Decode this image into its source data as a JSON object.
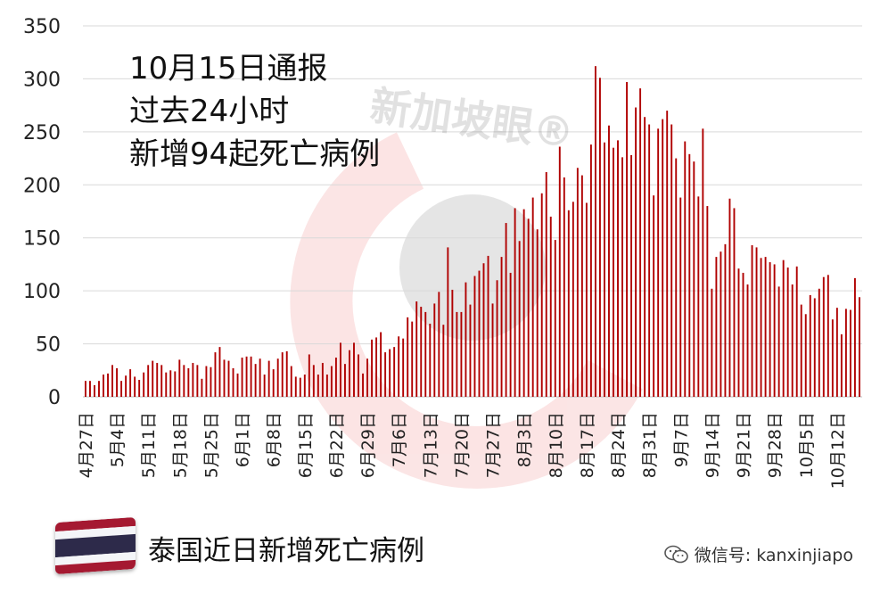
{
  "chart_data": {
    "type": "bar",
    "y_ticks": [
      0,
      50,
      100,
      150,
      200,
      250,
      300,
      350
    ],
    "ylim": [
      0,
      350
    ],
    "grid": true,
    "bar_color": "#b00000",
    "x_tick_labels": [
      "4月27日",
      "5月4日",
      "5月11日",
      "5月18日",
      "5月25日",
      "6月1日",
      "6月8日",
      "6月15日",
      "6月22日",
      "6月29日",
      "7月6日",
      "7月13日",
      "7月20日",
      "7月27日",
      "8月3日",
      "8月10日",
      "8月17日",
      "8月24日",
      "8月31日",
      "9月7日",
      "9月14日",
      "9月21日",
      "9月28日",
      "10月5日",
      "10月12日"
    ],
    "values": [
      15,
      15,
      11,
      15,
      21,
      22,
      30,
      27,
      15,
      20,
      26,
      19,
      16,
      23,
      30,
      34,
      32,
      30,
      23,
      25,
      24,
      35,
      30,
      27,
      32,
      30,
      17,
      29,
      28,
      42,
      47,
      35,
      34,
      27,
      22,
      37,
      38,
      38,
      31,
      36,
      21,
      34,
      26,
      36,
      42,
      43,
      29,
      19,
      18,
      21,
      40,
      30,
      21,
      32,
      21,
      29,
      37,
      51,
      31,
      44,
      51,
      40,
      22,
      36,
      54,
      56,
      61,
      42,
      45,
      47,
      57,
      55,
      75,
      71,
      90,
      85,
      80,
      69,
      88,
      99,
      68,
      141,
      101,
      80,
      80,
      108,
      87,
      114,
      119,
      126,
      133,
      88,
      110,
      132,
      164,
      117,
      178,
      147,
      177,
      168,
      188,
      158,
      192,
      212,
      170,
      148,
      236,
      207,
      176,
      184,
      216,
      209,
      183,
      238,
      312,
      301,
      240,
      256,
      235,
      242,
      226,
      297,
      228,
      273,
      291,
      264,
      257,
      190,
      253,
      262,
      270,
      257,
      225,
      188,
      241,
      229,
      222,
      189,
      253,
      180,
      102,
      132,
      137,
      144,
      187,
      178,
      121,
      117,
      106,
      143,
      141,
      131,
      132,
      127,
      125,
      104,
      129,
      122,
      106,
      123,
      87,
      78,
      96,
      93,
      102,
      113,
      115,
      73,
      84,
      59,
      83,
      82,
      112,
      94
    ],
    "annotation": [
      "10月15日通报",
      "过去24小时",
      "新增94起死亡病例"
    ]
  },
  "caption": "泰国近日新增死亡病例",
  "source": "微信号: kanxinjiapo",
  "watermark": "新加坡眼®",
  "flag_colors": [
    "#a51931",
    "#f4f5f8",
    "#2d2a4a",
    "#f4f5f8",
    "#a51931"
  ]
}
